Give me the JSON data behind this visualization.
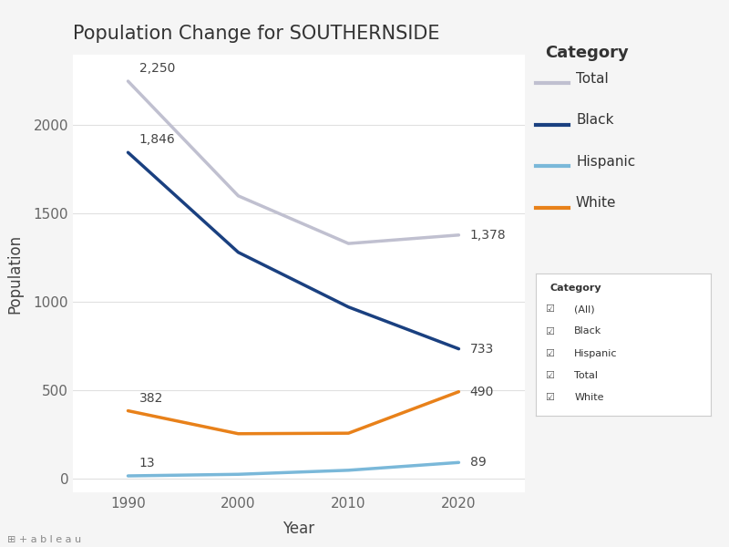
{
  "title": "Population Change for SOUTHERNSIDE",
  "xlabel": "Year",
  "ylabel": "Population",
  "years": [
    1990,
    2000,
    2010,
    2020
  ],
  "series_order": [
    "Total",
    "Black",
    "Hispanic",
    "White"
  ],
  "series": {
    "Total": {
      "values": [
        2250,
        1600,
        1330,
        1378
      ],
      "color": "#c0c0d0",
      "linewidth": 2.5
    },
    "Black": {
      "values": [
        1846,
        1280,
        970,
        733
      ],
      "color": "#1a4080",
      "linewidth": 2.5
    },
    "Hispanic": {
      "values": [
        13,
        22,
        45,
        89
      ],
      "color": "#7ab8d9",
      "linewidth": 2.5
    },
    "White": {
      "values": [
        382,
        252,
        255,
        490
      ],
      "color": "#e8811a",
      "linewidth": 2.5
    }
  },
  "annotations_left": {
    "Total": "2,250",
    "Black": "1,846",
    "Hispanic": "13",
    "White": "382"
  },
  "annotations_right": {
    "Total": "1,378",
    "Black": "733",
    "Hispanic": "89",
    "White": "490"
  },
  "ylim": [
    -80,
    2400
  ],
  "yticks": [
    0,
    500,
    1000,
    1500,
    2000
  ],
  "xlim": [
    1985,
    2026
  ],
  "background_color": "#f5f5f5",
  "plot_bg_color": "#ffffff",
  "grid_color": "#e0e0e0",
  "main_legend_title_fontsize": 13,
  "main_legend_fontsize": 11,
  "title_fontsize": 15,
  "axis_label_fontsize": 12,
  "tick_fontsize": 11,
  "annotation_fontsize": 10,
  "second_legend_items": [
    "(All)",
    "Black",
    "Hispanic",
    "Total",
    "White"
  ],
  "second_legend_title": "Category"
}
